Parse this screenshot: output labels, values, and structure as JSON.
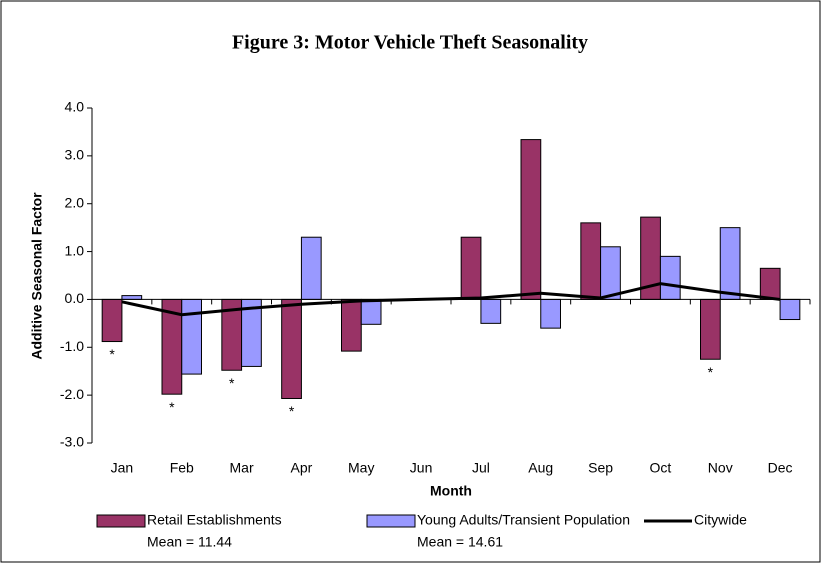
{
  "chart_data": {
    "type": "bar",
    "title": "Figure 3: Motor Vehicle Theft Seasonality",
    "ylabel": "Additive Seasonal Factor",
    "xlabel": "Month",
    "categories": [
      "Jan",
      "Feb",
      "Mar",
      "Apr",
      "May",
      "Jun",
      "Jul",
      "Aug",
      "Sep",
      "Oct",
      "Nov",
      "Dec"
    ],
    "series": [
      {
        "name": "Retail Establishments",
        "mean_label": "Mean = 11.44",
        "kind": "bar",
        "color": "#993366",
        "values": [
          -0.88,
          -1.98,
          -1.48,
          -2.07,
          -1.08,
          0,
          1.3,
          3.34,
          1.6,
          1.72,
          -1.25,
          0.65
        ]
      },
      {
        "name": "Young Adults/Transient Population",
        "mean_label": "Mean = 14.61",
        "kind": "bar",
        "color": "#9999ff",
        "values": [
          0.08,
          -1.56,
          -1.4,
          1.3,
          -0.52,
          0,
          -0.5,
          -0.6,
          1.1,
          0.9,
          1.5,
          -0.42
        ]
      },
      {
        "name": "Citywide",
        "kind": "line",
        "color": "#000000",
        "values": [
          -0.05,
          -0.32,
          -0.2,
          -0.1,
          -0.03,
          0,
          0.03,
          0.13,
          0.03,
          0.33,
          0.15,
          0.0
        ]
      }
    ],
    "annotations": [
      {
        "category": "Jan",
        "text": "*"
      },
      {
        "category": "Feb",
        "text": "*"
      },
      {
        "category": "Mar",
        "text": "*"
      },
      {
        "category": "Apr",
        "text": "*"
      },
      {
        "category": "Nov",
        "text": "*"
      }
    ],
    "ylim": [
      -3,
      4
    ],
    "yticks": [
      {
        "value": -3,
        "label": "-3.0"
      },
      {
        "value": -2,
        "label": "-2.0"
      },
      {
        "value": -1,
        "label": "-1.0"
      },
      {
        "value": 0,
        "label": "0.0"
      },
      {
        "value": 1,
        "label": "1.0"
      },
      {
        "value": 2,
        "label": "2.0"
      },
      {
        "value": 3,
        "label": "3.0"
      },
      {
        "value": 4,
        "label": "4.0"
      }
    ],
    "grid": false
  }
}
